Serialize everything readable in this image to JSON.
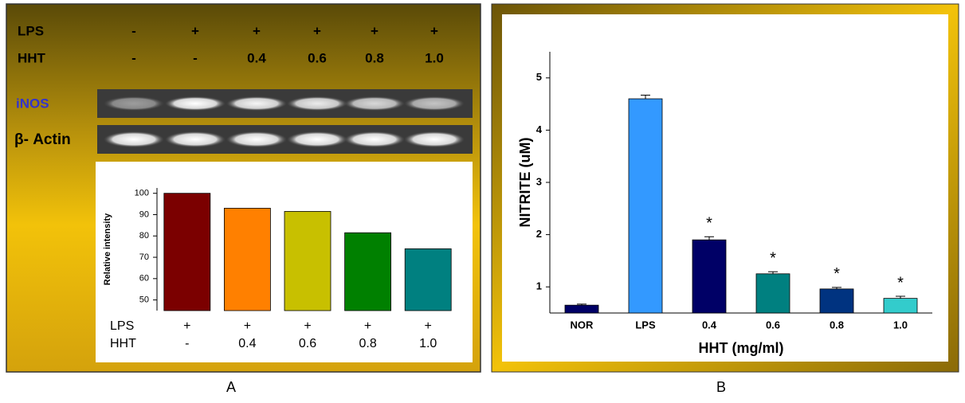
{
  "panel_labels": [
    "A",
    "B"
  ],
  "gel": {
    "rows": [
      {
        "label": "LPS",
        "values": [
          "-",
          "+",
          "+",
          "+",
          "+",
          "+"
        ]
      },
      {
        "label": "HHT",
        "values": [
          "-",
          "-",
          "0.4",
          "0.6",
          "0.8",
          "1.0"
        ]
      }
    ],
    "bands": [
      "iNOS",
      "β- Actin"
    ]
  },
  "chart_data": [
    {
      "type": "bar",
      "y_label": "Relative intensity",
      "category_rows": [
        {
          "label": "LPS",
          "labels": [
            "+",
            "+",
            "+",
            "+",
            "+"
          ]
        },
        {
          "label": "HHT",
          "labels": [
            "-",
            "0.4",
            "0.6",
            "0.8",
            "1.0"
          ]
        }
      ],
      "values": [
        100,
        93,
        91.5,
        81.5,
        74
      ],
      "colors": [
        "#7b0000",
        "#ff8000",
        "#c8c000",
        "#008000",
        "#008080"
      ],
      "ylim": [
        45,
        102.5
      ],
      "yticks": [
        50,
        60,
        70,
        80,
        90,
        100
      ]
    },
    {
      "type": "bar",
      "y_label": "NITRITE (uM)",
      "x_label": "HHT (mg/ml)",
      "categories": [
        "NOR",
        "LPS",
        "0.4",
        "0.6",
        "0.8",
        "1.0"
      ],
      "values": [
        0.65,
        4.6,
        1.9,
        1.25,
        0.96,
        0.78
      ],
      "errors": [
        0.02,
        0.07,
        0.06,
        0.04,
        0.03,
        0.04
      ],
      "markers": [
        null,
        null,
        "*",
        "*",
        "*",
        "*"
      ],
      "colors": [
        "#000066",
        "#3399ff",
        "#000066",
        "#008080",
        "#003380",
        "#33cccc"
      ],
      "ylim": [
        0.5,
        5.5
      ],
      "yticks": [
        1,
        2,
        3,
        4,
        5
      ]
    }
  ]
}
